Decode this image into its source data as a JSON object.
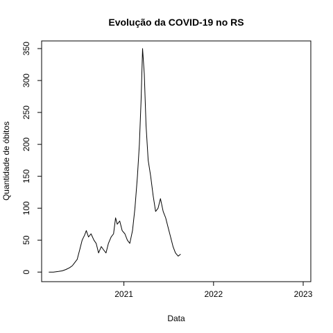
{
  "chart_data": {
    "type": "line",
    "title": "Evolução da COVID-19 no RS",
    "xlabel": "Data",
    "ylabel": "Quantidade de óbitos",
    "x_ticks": [
      "2021",
      "2022",
      "2023"
    ],
    "y_ticks": [
      "0",
      "50",
      "100",
      "150",
      "200",
      "250",
      "300",
      "350"
    ],
    "xlim": [
      "2020-02-01",
      "2023-02-01"
    ],
    "ylim": [
      -15,
      362
    ],
    "grid": false,
    "legend": "none",
    "line_color": "#000000",
    "series": [
      {
        "x": [
          "2020-03-01",
          "2020-03-20",
          "2020-04-10",
          "2020-04-25",
          "2020-05-10",
          "2020-05-25",
          "2020-06-05",
          "2020-06-15",
          "2020-06-25",
          "2020-07-05",
          "2020-07-15",
          "2020-07-25",
          "2020-08-01",
          "2020-08-10",
          "2020-08-20",
          "2020-09-01",
          "2020-09-10",
          "2020-09-20",
          "2020-10-01",
          "2020-10-10",
          "2020-10-20",
          "2020-10-30",
          "2020-11-10",
          "2020-11-20",
          "2020-11-28",
          "2020-12-05",
          "2020-12-15",
          "2020-12-25",
          "2021-01-05",
          "2021-01-15",
          "2021-01-25",
          "2021-02-05",
          "2021-02-15",
          "2021-02-25",
          "2021-03-05",
          "2021-03-12",
          "2021-03-18",
          "2021-03-25",
          "2021-04-01",
          "2021-04-10",
          "2021-04-20",
          "2021-04-30",
          "2021-05-10",
          "2021-05-20",
          "2021-05-30",
          "2021-06-10",
          "2021-06-20",
          "2021-06-30",
          "2021-07-10",
          "2021-07-20",
          "2021-07-30",
          "2021-08-10",
          "2021-08-20"
        ],
        "y": [
          0,
          0,
          1,
          2,
          4,
          7,
          10,
          15,
          20,
          35,
          50,
          58,
          65,
          55,
          60,
          50,
          45,
          30,
          40,
          35,
          30,
          45,
          55,
          60,
          85,
          75,
          80,
          65,
          60,
          50,
          45,
          65,
          100,
          150,
          200,
          270,
          350,
          310,
          230,
          175,
          150,
          120,
          95,
          100,
          115,
          95,
          85,
          70,
          55,
          40,
          30,
          25,
          28
        ]
      }
    ]
  }
}
